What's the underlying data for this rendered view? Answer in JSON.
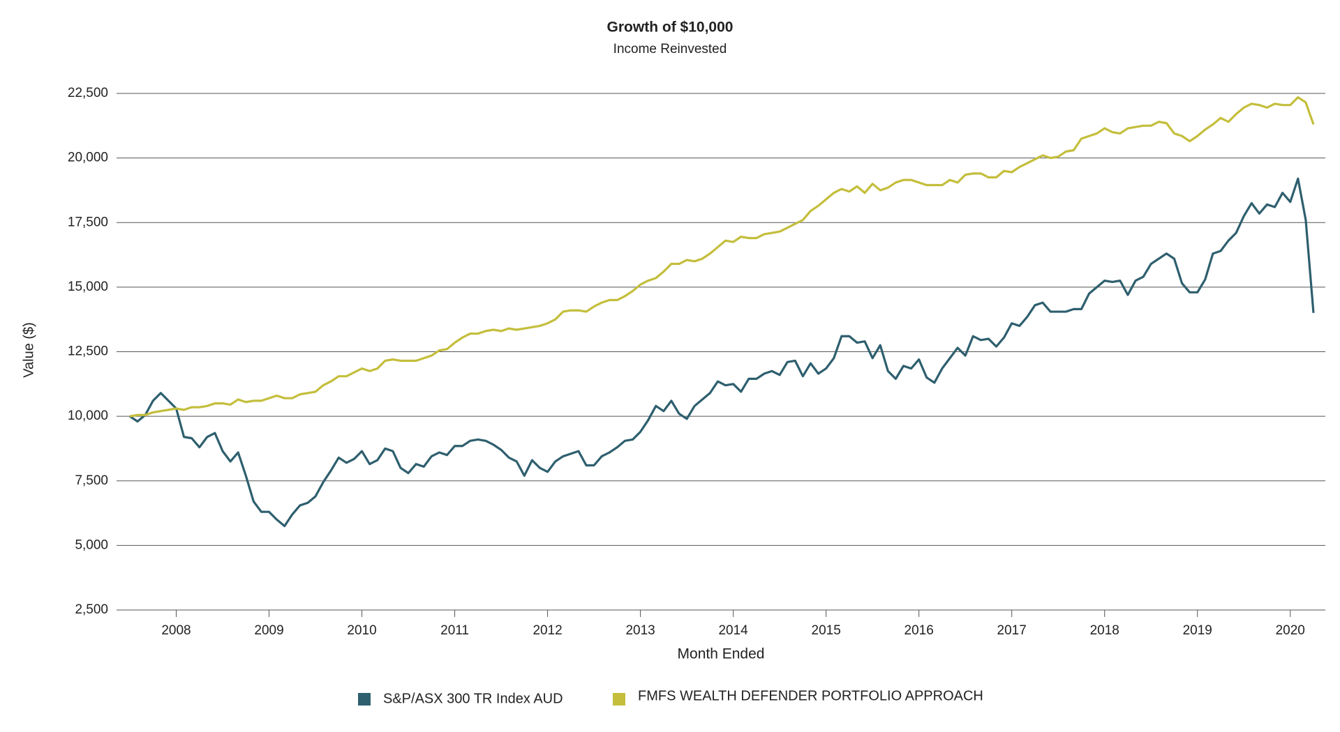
{
  "chart_data": {
    "type": "line",
    "title": "Growth of $10,000",
    "subtitle": "Income Reinvested",
    "x_label": "Month Ended",
    "y_label": "Value ($)",
    "categories": [
      null,
      null,
      null,
      null,
      null,
      null,
      "2008",
      null,
      null,
      null,
      null,
      null,
      null,
      null,
      null,
      null,
      null,
      null,
      "2009",
      null,
      null,
      null,
      null,
      null,
      null,
      null,
      null,
      null,
      null,
      null,
      "2010",
      null,
      null,
      null,
      null,
      null,
      null,
      null,
      null,
      null,
      null,
      null,
      "2011",
      null,
      null,
      null,
      null,
      null,
      null,
      null,
      null,
      null,
      null,
      null,
      "2012",
      null,
      null,
      null,
      null,
      null,
      null,
      null,
      null,
      null,
      null,
      null,
      "2013",
      null,
      null,
      null,
      null,
      null,
      null,
      null,
      null,
      null,
      null,
      null,
      "2014",
      null,
      null,
      null,
      null,
      null,
      null,
      null,
      null,
      null,
      null,
      null,
      "2015",
      null,
      null,
      null,
      null,
      null,
      null,
      null,
      null,
      null,
      null,
      null,
      "2016",
      null,
      null,
      null,
      null,
      null,
      null,
      null,
      null,
      null,
      null,
      null,
      "2017",
      null,
      null,
      null,
      null,
      null,
      null,
      null,
      null,
      null,
      null,
      null,
      "2018",
      null,
      null,
      null,
      null,
      null,
      null,
      null,
      null,
      null,
      null,
      null,
      "2019",
      null,
      null,
      null,
      null,
      null,
      null,
      null,
      null,
      null,
      null,
      null,
      "2020",
      null,
      null,
      null
    ],
    "series": [
      {
        "name": "S&P/ASX 300 TR Index AUD",
        "color": "#2e5f6e",
        "values": [
          10000,
          9800,
          10050,
          10600,
          10900,
          10600,
          10300,
          9200,
          9150,
          8800,
          9200,
          9350,
          8650,
          8250,
          8600,
          7700,
          6700,
          6300,
          6300,
          6000,
          5750,
          6200,
          6550,
          6650,
          6900,
          7450,
          7900,
          8400,
          8200,
          8350,
          8650,
          8150,
          8300,
          8750,
          8650,
          8000,
          7800,
          8150,
          8050,
          8450,
          8600,
          8500,
          8850,
          8850,
          9050,
          9100,
          9050,
          8900,
          8700,
          8400,
          8250,
          7700,
          8300,
          8000,
          7850,
          8250,
          8450,
          8550,
          8650,
          8100,
          8100,
          8450,
          8600,
          8800,
          9050,
          9100,
          9400,
          9850,
          10400,
          10200,
          10600,
          10100,
          9900,
          10400,
          10650,
          10900,
          11350,
          11200,
          11250,
          10950,
          11450,
          11450,
          11650,
          11750,
          11600,
          12100,
          12150,
          11550,
          12050,
          11650,
          11850,
          12250,
          13100,
          13100,
          12850,
          12900,
          12250,
          12750,
          11750,
          11450,
          11950,
          11850,
          12200,
          11500,
          11300,
          11850,
          12250,
          12650,
          12350,
          13100,
          12950,
          13000,
          12700,
          13050,
          13600,
          13500,
          13850,
          14300,
          14400,
          14050,
          14050,
          14050,
          14150,
          14150,
          14750,
          15000,
          15250,
          15200,
          15250,
          14700,
          15250,
          15400,
          15900,
          16100,
          16300,
          16100,
          15150,
          14800,
          14800,
          15300,
          16300,
          16400,
          16800,
          17100,
          17750,
          18250,
          17850,
          18200,
          18100,
          18650,
          18300,
          19200,
          17600,
          14000
        ]
      },
      {
        "name": "FMFS WEALTH DEFENDER PORTFOLIO APPROACH",
        "color": "#c4be3c",
        "values": [
          10000,
          10050,
          10050,
          10150,
          10200,
          10250,
          10300,
          10250,
          10350,
          10350,
          10400,
          10500,
          10500,
          10450,
          10650,
          10550,
          10600,
          10600,
          10700,
          10800,
          10700,
          10700,
          10850,
          10900,
          10950,
          11200,
          11350,
          11550,
          11550,
          11700,
          11850,
          11750,
          11850,
          12150,
          12200,
          12150,
          12150,
          12150,
          12250,
          12350,
          12550,
          12600,
          12850,
          13050,
          13200,
          13200,
          13300,
          13350,
          13300,
          13400,
          13350,
          13400,
          13450,
          13500,
          13600,
          13750,
          14050,
          14100,
          14100,
          14050,
          14250,
          14400,
          14500,
          14500,
          14650,
          14850,
          15100,
          15250,
          15350,
          15600,
          15900,
          15900,
          16050,
          16000,
          16100,
          16300,
          16550,
          16800,
          16750,
          16950,
          16900,
          16900,
          17050,
          17100,
          17150,
          17300,
          17450,
          17600,
          17950,
          18150,
          18400,
          18650,
          18800,
          18700,
          18900,
          18650,
          19000,
          18750,
          18850,
          19050,
          19150,
          19150,
          19050,
          18950,
          18950,
          18950,
          19150,
          19050,
          19350,
          19400,
          19400,
          19250,
          19250,
          19500,
          19450,
          19650,
          19800,
          19950,
          20100,
          20000,
          20050,
          20250,
          20300,
          20750,
          20850,
          20950,
          21150,
          21000,
          20950,
          21150,
          21200,
          21250,
          21250,
          21400,
          21350,
          20950,
          20850,
          20650,
          20850,
          21100,
          21300,
          21550,
          21400,
          21700,
          21950,
          22100,
          22050,
          21950,
          22100,
          22050,
          22050,
          22350,
          22150,
          21300
        ]
      }
    ],
    "ylim": [
      2500,
      22500
    ],
    "yticks": [
      {
        "value": 2500,
        "label": "2,500"
      },
      {
        "value": 5000,
        "label": "5,000"
      },
      {
        "value": 7500,
        "label": "7,500"
      },
      {
        "value": 10000,
        "label": "10,000"
      },
      {
        "value": 12500,
        "label": "12,500"
      },
      {
        "value": 15000,
        "label": "15,000"
      },
      {
        "value": 17500,
        "label": "17,500"
      },
      {
        "value": 20000,
        "label": "20,000"
      },
      {
        "value": 22500,
        "label": "22,500"
      }
    ],
    "grid": true
  }
}
